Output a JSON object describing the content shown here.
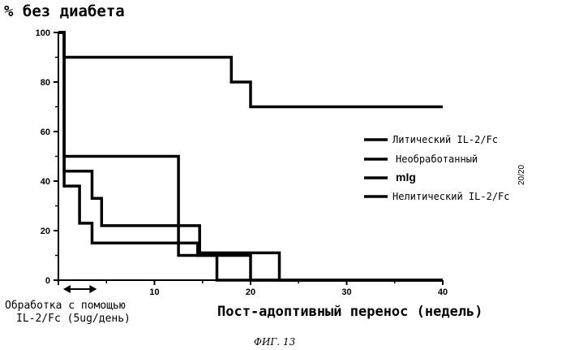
{
  "chart_data": {
    "type": "line",
    "step": true,
    "title": "% без диабета",
    "xlabel": "Пост-адоптивный перенос (недель)",
    "ylabel": "",
    "xlim": [
      0,
      40
    ],
    "ylim": [
      0,
      100
    ],
    "xticks": [
      10,
      20,
      30,
      40
    ],
    "yticks": [
      0,
      20,
      40,
      60,
      80,
      100
    ],
    "grid": false,
    "legend_position": "right",
    "legend": [
      "Литический IL-2/Fc",
      "Необработанный",
      "mIg",
      "Нелитический IL-2/Fc"
    ],
    "series": [
      {
        "name": "Литический IL-2/Fc",
        "x": [
          0,
          0.6,
          0.6,
          18,
          18,
          20,
          20,
          40
        ],
        "y": [
          100,
          100,
          90,
          90,
          80,
          80,
          70,
          70
        ]
      },
      {
        "name": "Необработанный",
        "x": [
          0,
          0.6,
          0.6,
          12.5,
          12.5,
          16.5,
          16.5,
          40
        ],
        "y": [
          100,
          100,
          50,
          50,
          10,
          10,
          0,
          0
        ]
      },
      {
        "name": "mIg",
        "x": [
          0,
          0.6,
          0.6,
          3.5,
          3.5,
          4.5,
          4.5,
          14.7,
          14.7,
          23,
          23,
          40
        ],
        "y": [
          100,
          100,
          44,
          44,
          33,
          33,
          22,
          22,
          11,
          11,
          0,
          0
        ]
      },
      {
        "name": "Нелитический IL-2/Fc",
        "x": [
          0,
          0.6,
          0.6,
          2.2,
          2.2,
          3.5,
          3.5,
          14.5,
          14.5,
          20,
          20,
          40
        ],
        "y": [
          100,
          100,
          38,
          38,
          23,
          23,
          15,
          15,
          10,
          10,
          0,
          0
        ]
      }
    ],
    "annotation": {
      "text_lines": [
        "Обработка с помощью",
        "IL-2/Fc (5ug/день)"
      ],
      "x_range": [
        0.5,
        4
      ]
    }
  },
  "y_tick_labels": [
    "0",
    "20",
    "40",
    "60",
    "80",
    "100"
  ],
  "x_tick_labels": [
    "10",
    "20",
    "30",
    "40"
  ],
  "figure_caption": "ФИГ. 13",
  "page_number": "20/20"
}
